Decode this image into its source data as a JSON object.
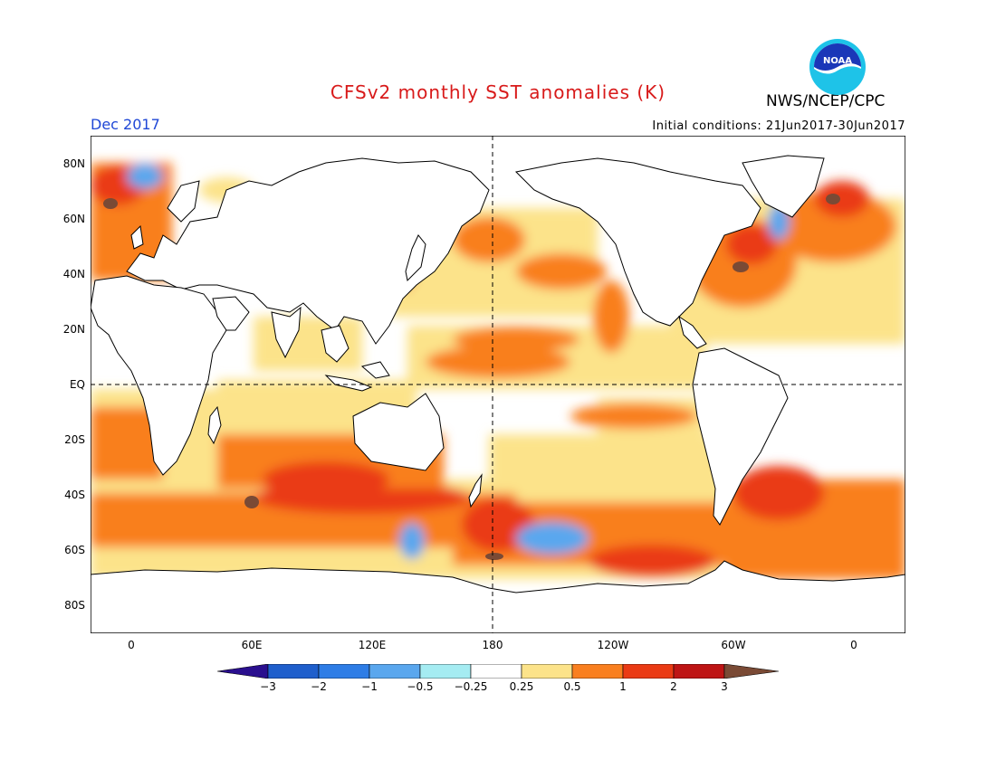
{
  "header": {
    "title": "CFSv2 monthly SST anomalies (K)",
    "org": "NWS/NCEP/CPC",
    "period": "Dec 2017",
    "initial_conditions": "Initial conditions: 21Jun2017-30Jun2017",
    "logo_text": "NOAA"
  },
  "colors": {
    "title": "#d81a1a",
    "period": "#1f47d6",
    "land": "#ffffff",
    "coast": "#000000"
  },
  "map": {
    "lat_labels": [
      "80N",
      "60N",
      "40N",
      "20N",
      "EQ",
      "20S",
      "40S",
      "60S",
      "80S"
    ],
    "lon_labels": [
      "0",
      "60E",
      "120E",
      "180",
      "120W",
      "60W",
      "0"
    ]
  },
  "colorbar": {
    "colors": [
      "#2a0f8e",
      "#1f5fcc",
      "#2e7de6",
      "#5aa7ee",
      "#a5ecf2",
      "#ffffff",
      "#fce38a",
      "#f97f1f",
      "#ea3a14",
      "#be1515",
      "#7a4a35"
    ],
    "labels": [
      "−3",
      "−2",
      "−1",
      "−0.5",
      "−0.25",
      "0.25",
      "0.5",
      "1",
      "2",
      "3"
    ]
  }
}
